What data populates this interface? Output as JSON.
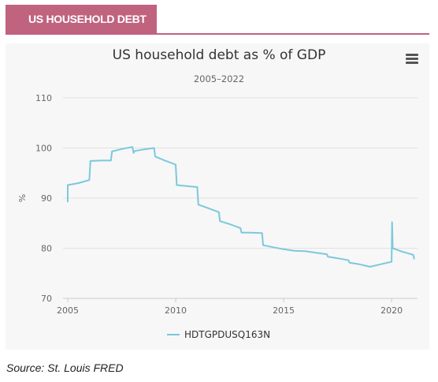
{
  "header": {
    "title": "US HOUSEHOLD DEBT"
  },
  "source": "Source: St. Louis FRED",
  "colors": {
    "accent": "#c0637f",
    "series": "#7cc8dc",
    "background": "#f7f7f7"
  },
  "menu": {
    "icon": "hamburger-menu-icon"
  },
  "chart_data": {
    "type": "line",
    "title": "US household debt as % of GDP",
    "subtitle": "2005–2022",
    "ylabel": "%",
    "xlabel": "",
    "xlim": [
      2005,
      2021.2
    ],
    "ylim": [
      70,
      110
    ],
    "yticks": [
      70,
      80,
      90,
      100,
      110
    ],
    "xticks": [
      2005,
      2010,
      2015,
      2020
    ],
    "grid": "horizontal",
    "legend_position": "bottom-center",
    "series": [
      {
        "name": "HDTGPDUSQ163N",
        "points": [
          [
            2005.0,
            89.2
          ],
          [
            2005.0,
            92.6
          ],
          [
            2005.5,
            93.0
          ],
          [
            2006.0,
            93.6
          ],
          [
            2006.05,
            97.4
          ],
          [
            2006.5,
            97.5
          ],
          [
            2007.0,
            97.5
          ],
          [
            2007.05,
            99.3
          ],
          [
            2007.5,
            99.8
          ],
          [
            2008.0,
            100.2
          ],
          [
            2008.05,
            99.0
          ],
          [
            2008.1,
            99.4
          ],
          [
            2008.5,
            99.7
          ],
          [
            2009.0,
            100.0
          ],
          [
            2009.05,
            98.3
          ],
          [
            2009.5,
            97.5
          ],
          [
            2010.0,
            96.7
          ],
          [
            2010.05,
            92.6
          ],
          [
            2010.5,
            92.4
          ],
          [
            2011.0,
            92.2
          ],
          [
            2011.05,
            88.7
          ],
          [
            2011.5,
            88.0
          ],
          [
            2012.0,
            87.2
          ],
          [
            2012.05,
            85.4
          ],
          [
            2012.5,
            84.8
          ],
          [
            2013.0,
            84.0
          ],
          [
            2013.05,
            83.1
          ],
          [
            2013.5,
            83.1
          ],
          [
            2014.0,
            83.0
          ],
          [
            2014.05,
            80.6
          ],
          [
            2014.5,
            80.2
          ],
          [
            2015.0,
            79.8
          ],
          [
            2015.5,
            79.5
          ],
          [
            2016.0,
            79.4
          ],
          [
            2016.5,
            79.1
          ],
          [
            2017.0,
            78.8
          ],
          [
            2017.05,
            78.3
          ],
          [
            2017.5,
            78.0
          ],
          [
            2018.0,
            77.6
          ],
          [
            2018.05,
            77.1
          ],
          [
            2018.5,
            76.8
          ],
          [
            2019.0,
            76.3
          ],
          [
            2019.5,
            76.8
          ],
          [
            2020.0,
            77.3
          ],
          [
            2020.02,
            85.2
          ],
          [
            2020.05,
            80.0
          ],
          [
            2020.5,
            79.3
          ],
          [
            2021.0,
            78.7
          ],
          [
            2021.05,
            77.8
          ]
        ]
      }
    ]
  }
}
